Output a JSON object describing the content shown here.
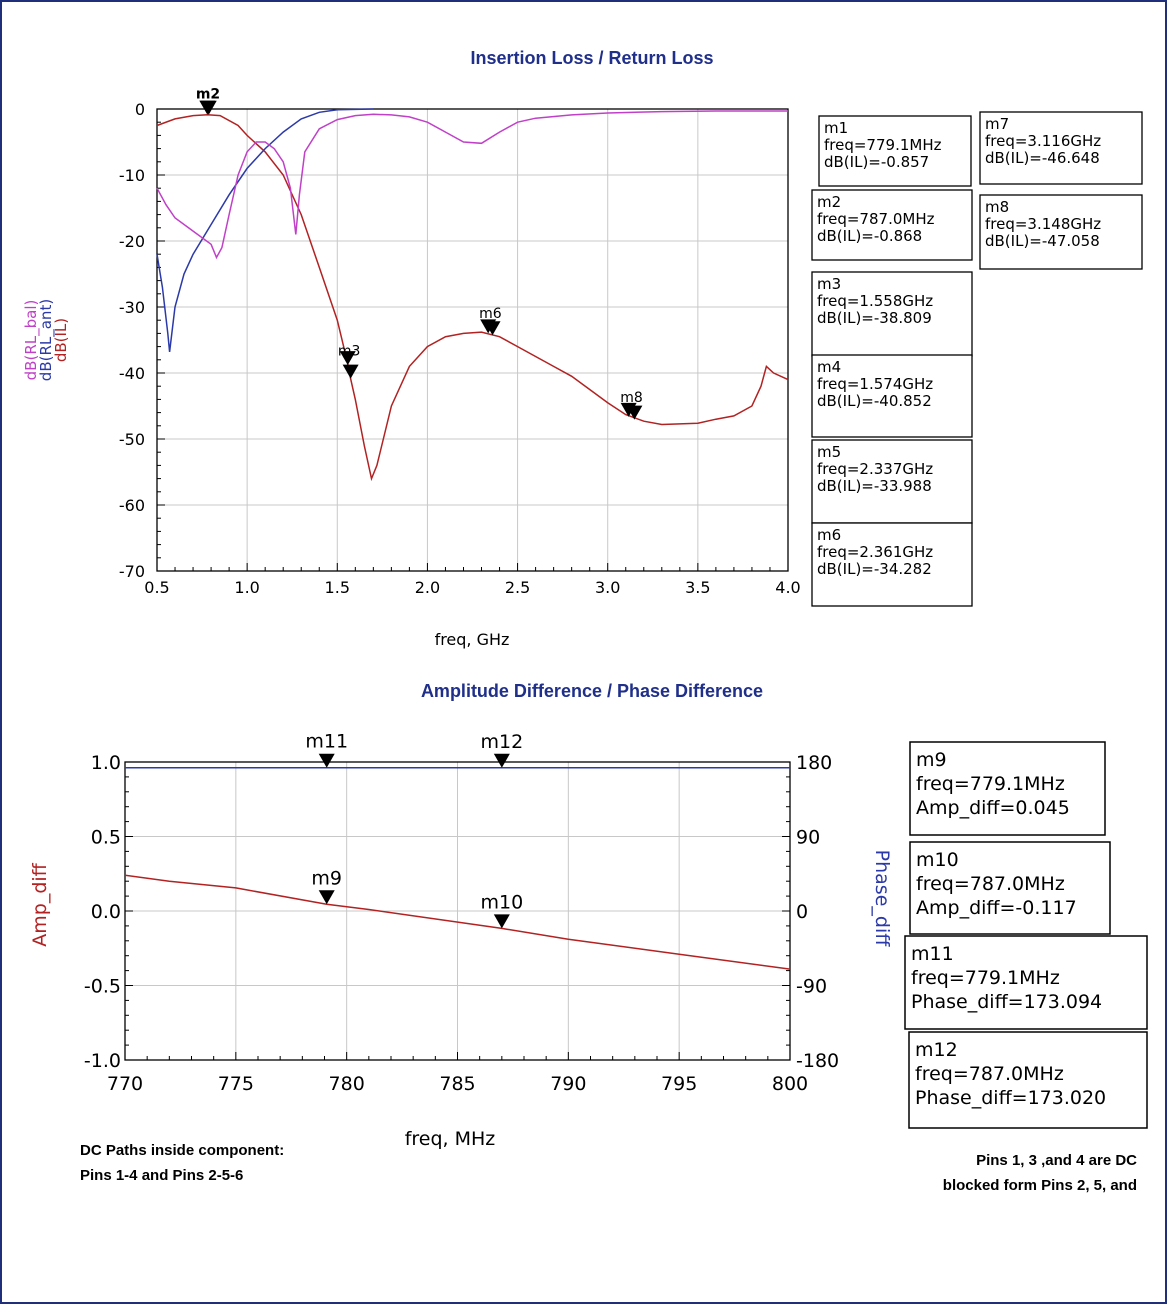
{
  "colors": {
    "il": "#b22222",
    "rl_ant": "#2b3aa8",
    "rl_bal": "#c040c8",
    "amp": "#b22222",
    "phase": "#2b3aa8",
    "title": "#1f2f8a",
    "frame": "#1f2f7a"
  },
  "chart_data": [
    {
      "type": "line",
      "title": "Insertion Loss / Return Loss",
      "xlabel": "freq, GHz",
      "ylabels": [
        "dB(RL_bal)",
        "dB(RL_ant)",
        "dB(IL)"
      ],
      "xlim": [
        0.5,
        4.0
      ],
      "ylim": [
        -70,
        0
      ],
      "xticks": [
        "0.5",
        "1.0",
        "1.5",
        "2.0",
        "2.5",
        "3.0",
        "3.5",
        "4.0"
      ],
      "yticks": [
        "0",
        "-10",
        "-20",
        "-30",
        "-40",
        "-50",
        "-60",
        "-70"
      ],
      "grid": true,
      "series": [
        {
          "name": "dB(IL)",
          "color": "#b22222",
          "points": [
            [
              0.5,
              -2.5
            ],
            [
              0.6,
              -1.5
            ],
            [
              0.7,
              -1.0
            ],
            [
              0.78,
              -0.86
            ],
            [
              0.85,
              -1.0
            ],
            [
              0.95,
              -2.5
            ],
            [
              1.0,
              -4.0
            ],
            [
              1.1,
              -6.5
            ],
            [
              1.2,
              -10.0
            ],
            [
              1.3,
              -16.0
            ],
            [
              1.4,
              -24.0
            ],
            [
              1.5,
              -32.0
            ],
            [
              1.56,
              -38.8
            ],
            [
              1.574,
              -40.85
            ],
            [
              1.6,
              -44.0
            ],
            [
              1.65,
              -51.0
            ],
            [
              1.69,
              -56.0
            ],
            [
              1.72,
              -54.0
            ],
            [
              1.8,
              -45.0
            ],
            [
              1.9,
              -39.0
            ],
            [
              2.0,
              -36.0
            ],
            [
              2.1,
              -34.5
            ],
            [
              2.2,
              -34.0
            ],
            [
              2.3,
              -33.8
            ],
            [
              2.4,
              -34.5
            ],
            [
              2.5,
              -36.0
            ],
            [
              2.6,
              -37.5
            ],
            [
              2.7,
              -39.0
            ],
            [
              2.8,
              -40.5
            ],
            [
              2.9,
              -42.5
            ],
            [
              3.0,
              -44.5
            ],
            [
              3.1,
              -46.3
            ],
            [
              3.2,
              -47.3
            ],
            [
              3.3,
              -47.8
            ],
            [
              3.5,
              -47.6
            ],
            [
              3.6,
              -47.0
            ],
            [
              3.7,
              -46.5
            ],
            [
              3.8,
              -45.0
            ],
            [
              3.85,
              -42.0
            ],
            [
              3.88,
              -39.0
            ],
            [
              3.92,
              -40.0
            ],
            [
              4.0,
              -41.0
            ]
          ]
        },
        {
          "name": "dB(RL_ant)",
          "color": "#2b3aa8",
          "points": [
            [
              0.5,
              -22.0
            ],
            [
              0.53,
              -27.0
            ],
            [
              0.56,
              -34.0
            ],
            [
              0.57,
              -36.8
            ],
            [
              0.6,
              -30.0
            ],
            [
              0.65,
              -25.0
            ],
            [
              0.7,
              -22.0
            ],
            [
              0.8,
              -17.5
            ],
            [
              0.9,
              -13.0
            ],
            [
              1.0,
              -9.0
            ],
            [
              1.1,
              -6.0
            ],
            [
              1.2,
              -3.5
            ],
            [
              1.3,
              -1.5
            ],
            [
              1.4,
              -0.5
            ],
            [
              1.5,
              -0.1
            ],
            [
              1.7,
              0.0
            ]
          ]
        },
        {
          "name": "dB(RL_bal)",
          "color": "#c040c8",
          "points": [
            [
              0.5,
              -12.0
            ],
            [
              0.55,
              -14.5
            ],
            [
              0.6,
              -16.5
            ],
            [
              0.7,
              -18.5
            ],
            [
              0.8,
              -20.5
            ],
            [
              0.83,
              -22.5
            ],
            [
              0.86,
              -21.0
            ],
            [
              0.9,
              -16.0
            ],
            [
              0.95,
              -10.0
            ],
            [
              1.0,
              -6.5
            ],
            [
              1.05,
              -5.0
            ],
            [
              1.1,
              -5.0
            ],
            [
              1.15,
              -6.0
            ],
            [
              1.2,
              -8.0
            ],
            [
              1.24,
              -12.0
            ],
            [
              1.27,
              -19.0
            ],
            [
              1.29,
              -13.0
            ],
            [
              1.32,
              -6.5
            ],
            [
              1.4,
              -3.0
            ],
            [
              1.5,
              -1.6
            ],
            [
              1.6,
              -1.0
            ],
            [
              1.7,
              -0.8
            ],
            [
              1.8,
              -0.9
            ],
            [
              1.9,
              -1.2
            ],
            [
              2.0,
              -2.0
            ],
            [
              2.1,
              -3.5
            ],
            [
              2.2,
              -5.0
            ],
            [
              2.3,
              -5.2
            ],
            [
              2.4,
              -3.5
            ],
            [
              2.5,
              -2.0
            ],
            [
              2.6,
              -1.4
            ],
            [
              2.8,
              -0.9
            ],
            [
              3.0,
              -0.6
            ],
            [
              3.3,
              -0.4
            ],
            [
              3.6,
              -0.3
            ],
            [
              4.0,
              -0.3
            ]
          ]
        }
      ],
      "markers": [
        {
          "label": "m1",
          "x": 0.7791,
          "y": -0.857
        },
        {
          "label": "m2",
          "x": 0.787,
          "y": -0.868
        },
        {
          "label": "m3",
          "x": 1.558,
          "y": -38.809
        },
        {
          "label": "m4",
          "x": 1.574,
          "y": -40.852
        },
        {
          "label": "m5",
          "x": 2.337,
          "y": -33.988
        },
        {
          "label": "m6",
          "x": 2.361,
          "y": -34.282
        },
        {
          "label": "m7",
          "x": 3.116,
          "y": -46.648
        },
        {
          "label": "m8",
          "x": 3.148,
          "y": -47.058
        }
      ],
      "marker_overlay_labels": [
        {
          "text": "m2",
          "x": 0.783,
          "y": -0.86
        },
        {
          "text": "m3",
          "x": 1.566,
          "y": -39.8
        },
        {
          "text": "m6",
          "x": 2.349,
          "y": -34.1
        },
        {
          "text": "m8",
          "x": 3.132,
          "y": -46.8
        }
      ],
      "readouts": [
        {
          "label": "m1",
          "lines": [
            "m1",
            "freq=779.1MHz",
            "dB(IL)=-0.857"
          ]
        },
        {
          "label": "m2",
          "lines": [
            "m2",
            "freq=787.0MHz",
            "dB(IL)=-0.868"
          ]
        },
        {
          "label": "m3",
          "lines": [
            "m3",
            "freq=1.558GHz",
            "dB(IL)=-38.809"
          ]
        },
        {
          "label": "m4",
          "lines": [
            "m4",
            "freq=1.574GHz",
            "dB(IL)=-40.852"
          ]
        },
        {
          "label": "m5",
          "lines": [
            "m5",
            "freq=2.337GHz",
            "dB(IL)=-33.988"
          ]
        },
        {
          "label": "m6",
          "lines": [
            "m6",
            "freq=2.361GHz",
            "dB(IL)=-34.282"
          ]
        },
        {
          "label": "m7",
          "lines": [
            "m7",
            "freq=3.116GHz",
            "dB(IL)=-46.648"
          ]
        },
        {
          "label": "m8",
          "lines": [
            "m8",
            "freq=3.148GHz",
            "dB(IL)=-47.058"
          ]
        }
      ]
    },
    {
      "type": "line",
      "title": "Amplitude Difference / Phase Difference",
      "xlabel": "freq, MHz",
      "ylabel_left": "Amp_diff",
      "ylabel_right": "Phase_diff",
      "xlim": [
        770,
        800
      ],
      "ylim_left": [
        -1.0,
        1.0
      ],
      "ylim_right": [
        -180,
        180
      ],
      "xticks": [
        "770",
        "775",
        "780",
        "785",
        "790",
        "795",
        "800"
      ],
      "yticks_left": [
        "1.0",
        "0.5",
        "0.0",
        "-0.5",
        "-1.0"
      ],
      "yticks_right": [
        "180",
        "90",
        "0",
        "-90",
        "-180"
      ],
      "grid": true,
      "series": [
        {
          "name": "Amp_diff",
          "axis": "left",
          "color": "#b22222",
          "points": [
            [
              770,
              0.24
            ],
            [
              772,
              0.2
            ],
            [
              775,
              0.155
            ],
            [
              779.1,
              0.045
            ],
            [
              781,
              0.01
            ],
            [
              787,
              -0.117
            ],
            [
              790,
              -0.19
            ],
            [
              795,
              -0.29
            ],
            [
              800,
              -0.39
            ]
          ]
        },
        {
          "name": "Phase_diff",
          "axis": "right",
          "color": "#2b3aa8",
          "points": [
            [
              770,
              173.1
            ],
            [
              779.1,
              173.094
            ],
            [
              787,
              173.02
            ],
            [
              800,
              172.95
            ]
          ]
        }
      ],
      "markers": [
        {
          "label": "m9",
          "x": 779.1,
          "y": 0.045,
          "axis": "left"
        },
        {
          "label": "m10",
          "x": 787.0,
          "y": -0.117,
          "axis": "left"
        },
        {
          "label": "m11",
          "x": 779.1,
          "y": 173.094,
          "axis": "right"
        },
        {
          "label": "m12",
          "x": 787.0,
          "y": 173.02,
          "axis": "right"
        }
      ],
      "readouts": [
        {
          "label": "m9",
          "lines": [
            "m9",
            "freq=779.1MHz",
            "Amp_diff=0.045"
          ]
        },
        {
          "label": "m10",
          "lines": [
            "m10",
            "freq=787.0MHz",
            "Amp_diff=-0.117"
          ]
        },
        {
          "label": "m11",
          "lines": [
            "m11",
            "freq=779.1MHz",
            "Phase_diff=173.094"
          ]
        },
        {
          "label": "m12",
          "lines": [
            "m12",
            "freq=787.0MHz",
            "Phase_diff=173.020"
          ]
        }
      ]
    }
  ],
  "notes": {
    "left_line1": "DC Paths inside component:",
    "left_line2": "Pins 1-4 and Pins 2-5-6",
    "right_line1": "Pins 1, 3 ,and 4 are DC",
    "right_line2": "blocked form Pins 2, 5, and"
  }
}
